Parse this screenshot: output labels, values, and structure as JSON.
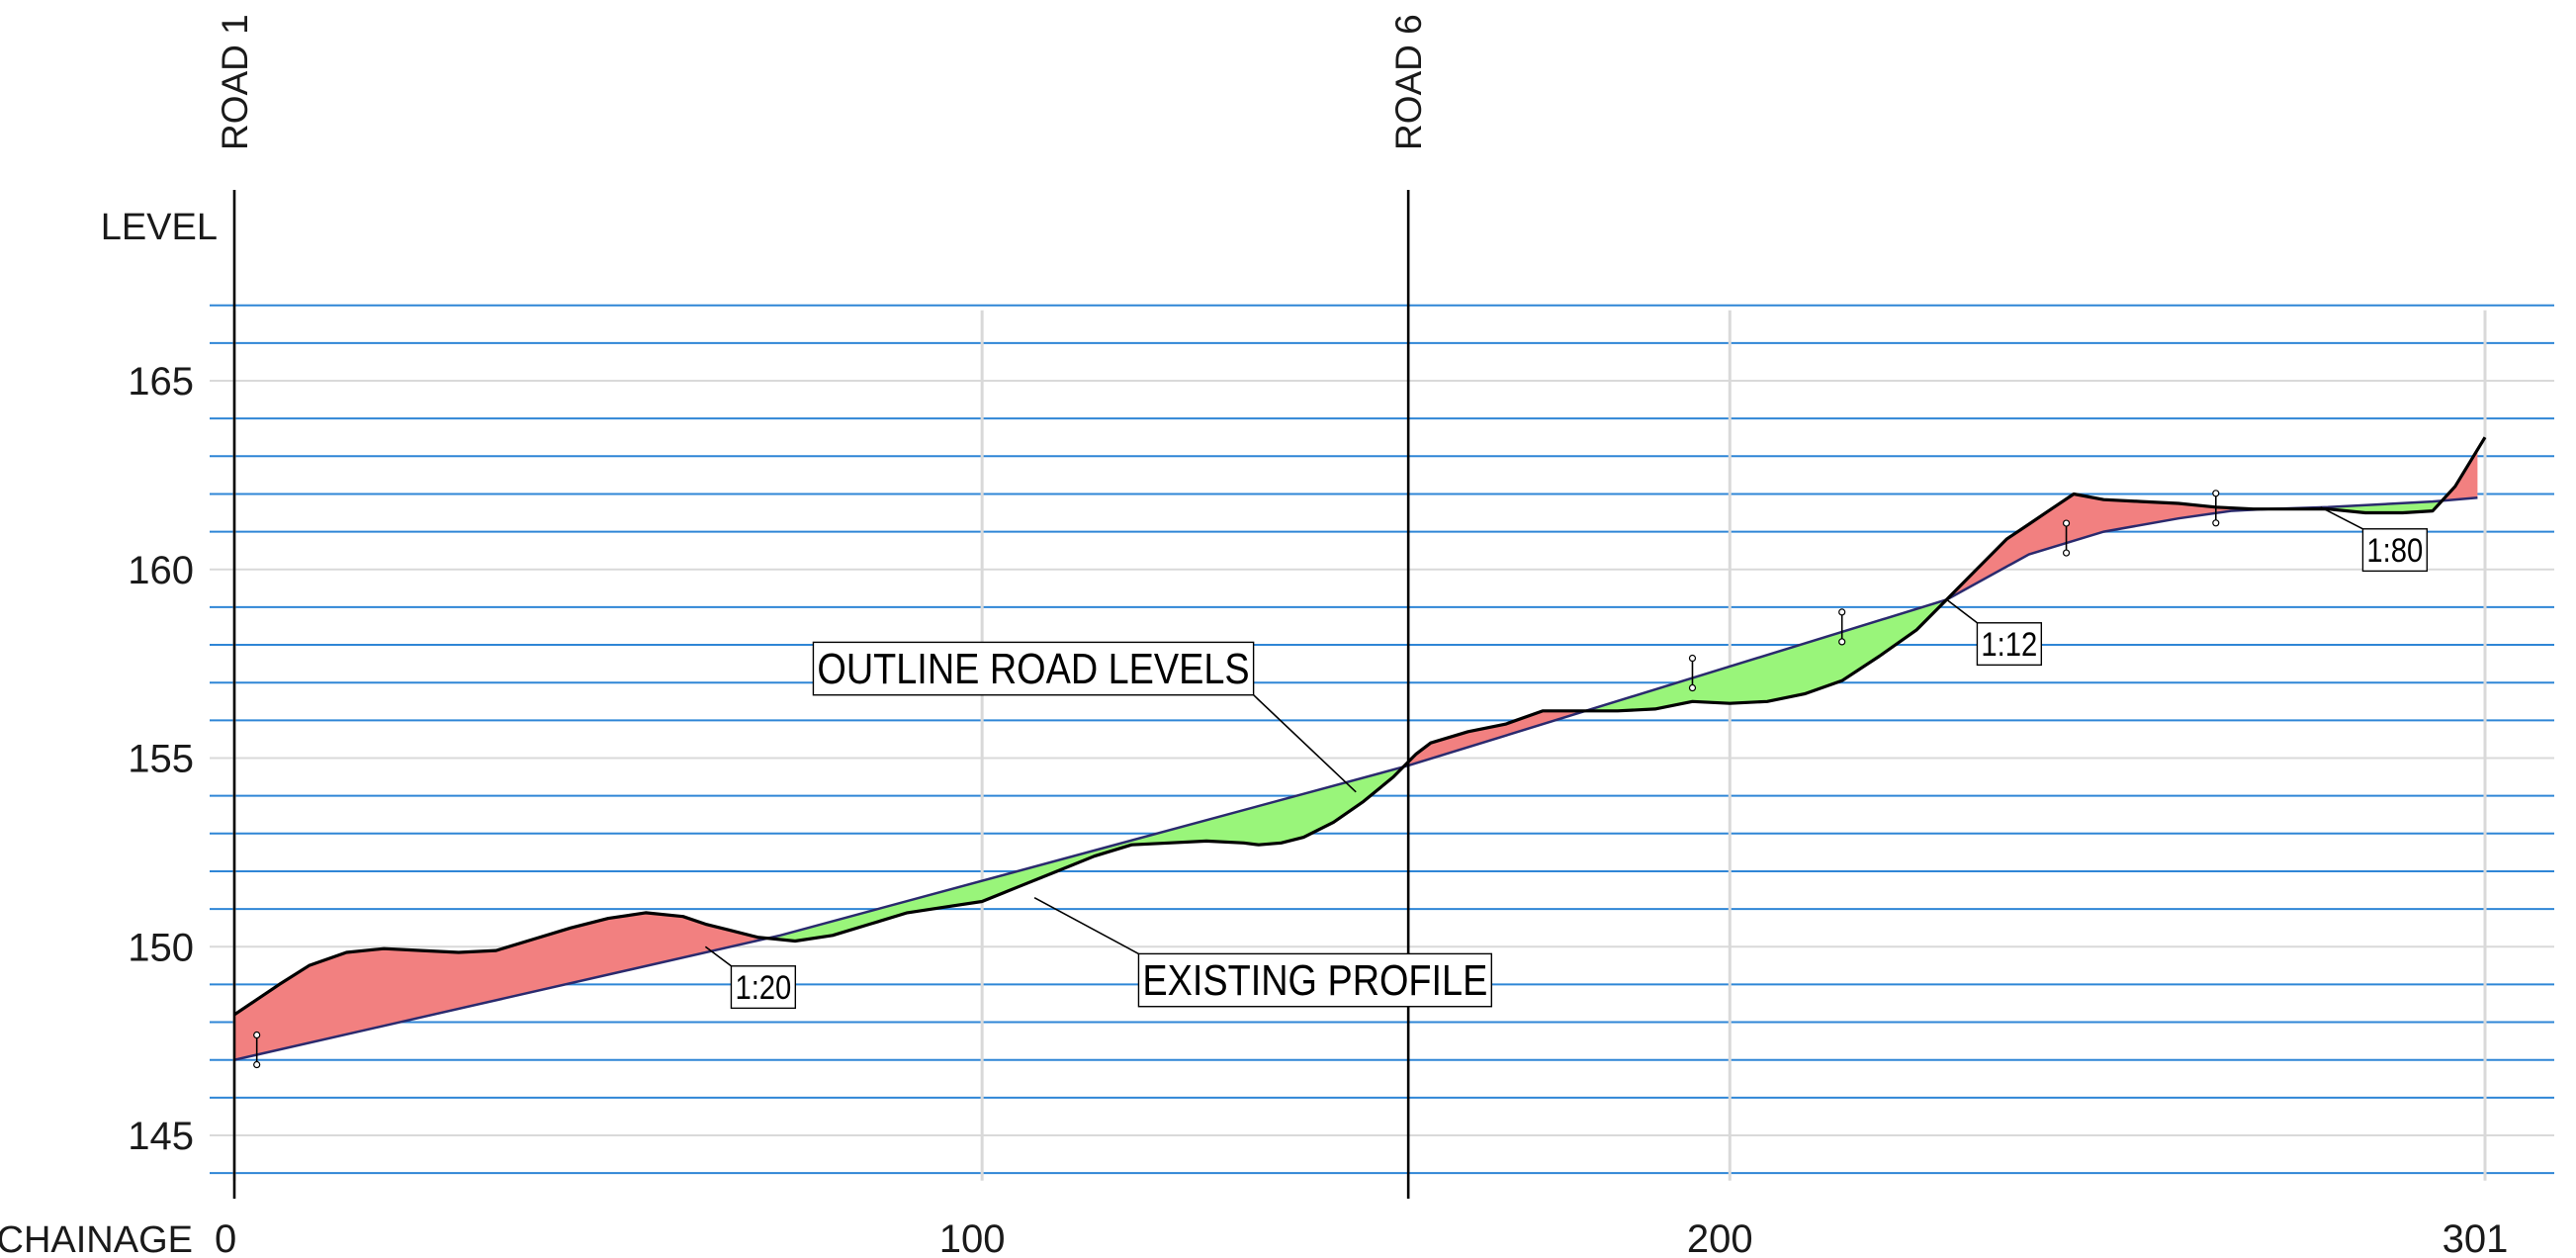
{
  "chart_data": {
    "type": "area",
    "title": "",
    "ylabel": "LEVEL",
    "xlabel": "CHAINAGE",
    "x_ticks": [
      0,
      100,
      200,
      301
    ],
    "y_ticks": [
      145,
      150,
      155,
      160,
      165
    ],
    "xlim": [
      0,
      301
    ],
    "ylim": [
      143.8,
      167
    ],
    "grid": true,
    "minor_gridlines_every": 1,
    "colors": {
      "cut": "#f28080",
      "fill": "#99f57a",
      "minor_grid": "#2f86d6",
      "major_grid": "#d9d9d9",
      "axis": "#000000",
      "road_line": "#2a2a6e"
    },
    "verticals": [
      {
        "label": "ROAD 1",
        "x": 0
      },
      {
        "label": "ROAD 6",
        "x": 157
      }
    ],
    "series": [
      {
        "name": "OUTLINE ROAD LEVELS",
        "x": [
          0,
          73,
          157,
          229,
          240,
          250,
          260,
          267,
          272,
          280,
          294,
          300
        ],
        "y": [
          147.0,
          150.3,
          154.8,
          159.2,
          160.4,
          161.0,
          161.35,
          161.55,
          161.6,
          161.65,
          161.8,
          161.9
        ]
      },
      {
        "name": "EXISTING PROFILE",
        "x": [
          0,
          3,
          6,
          10,
          15,
          20,
          25,
          30,
          35,
          40,
          45,
          50,
          55,
          60,
          63,
          66,
          70,
          75,
          80,
          85,
          90,
          95,
          100,
          105,
          110,
          115,
          120,
          125,
          130,
          135,
          137,
          140,
          143,
          147,
          151,
          155,
          158,
          160,
          165,
          170,
          175,
          180,
          185,
          190,
          195,
          200,
          205,
          210,
          215,
          220,
          225,
          229,
          233,
          237,
          240,
          243,
          246,
          250,
          255,
          260,
          265,
          270,
          275,
          280,
          285,
          290,
          294,
          297,
          301
        ],
        "y": [
          148.2,
          148.6,
          149.0,
          149.5,
          149.85,
          149.95,
          149.9,
          149.85,
          149.9,
          150.2,
          150.5,
          150.75,
          150.9,
          150.8,
          150.6,
          150.45,
          150.25,
          150.15,
          150.3,
          150.6,
          150.9,
          151.05,
          151.2,
          151.6,
          152.0,
          152.4,
          152.7,
          152.75,
          152.8,
          152.75,
          152.7,
          152.75,
          152.9,
          153.3,
          153.85,
          154.5,
          155.1,
          155.4,
          155.7,
          155.9,
          156.25,
          156.25,
          156.25,
          156.3,
          156.5,
          156.45,
          156.5,
          156.7,
          157.05,
          157.7,
          158.4,
          159.2,
          160.0,
          160.8,
          161.2,
          161.6,
          162.0,
          161.85,
          161.8,
          161.75,
          161.65,
          161.6,
          161.6,
          161.6,
          161.5,
          161.5,
          161.55,
          162.2,
          163.5
        ]
      }
    ],
    "annotations": [
      {
        "text": "OUTLINE ROAD LEVELS",
        "x": 150,
        "y": 154.1
      },
      {
        "text": "EXISTING PROFILE",
        "x": 107,
        "y": 151.3
      },
      {
        "text": "1:20",
        "x": 63,
        "y": 150.0
      },
      {
        "text": "1:12",
        "x": 229,
        "y": 159.2
      },
      {
        "text": "1:80",
        "x": 279,
        "y": 161.65
      }
    ]
  }
}
